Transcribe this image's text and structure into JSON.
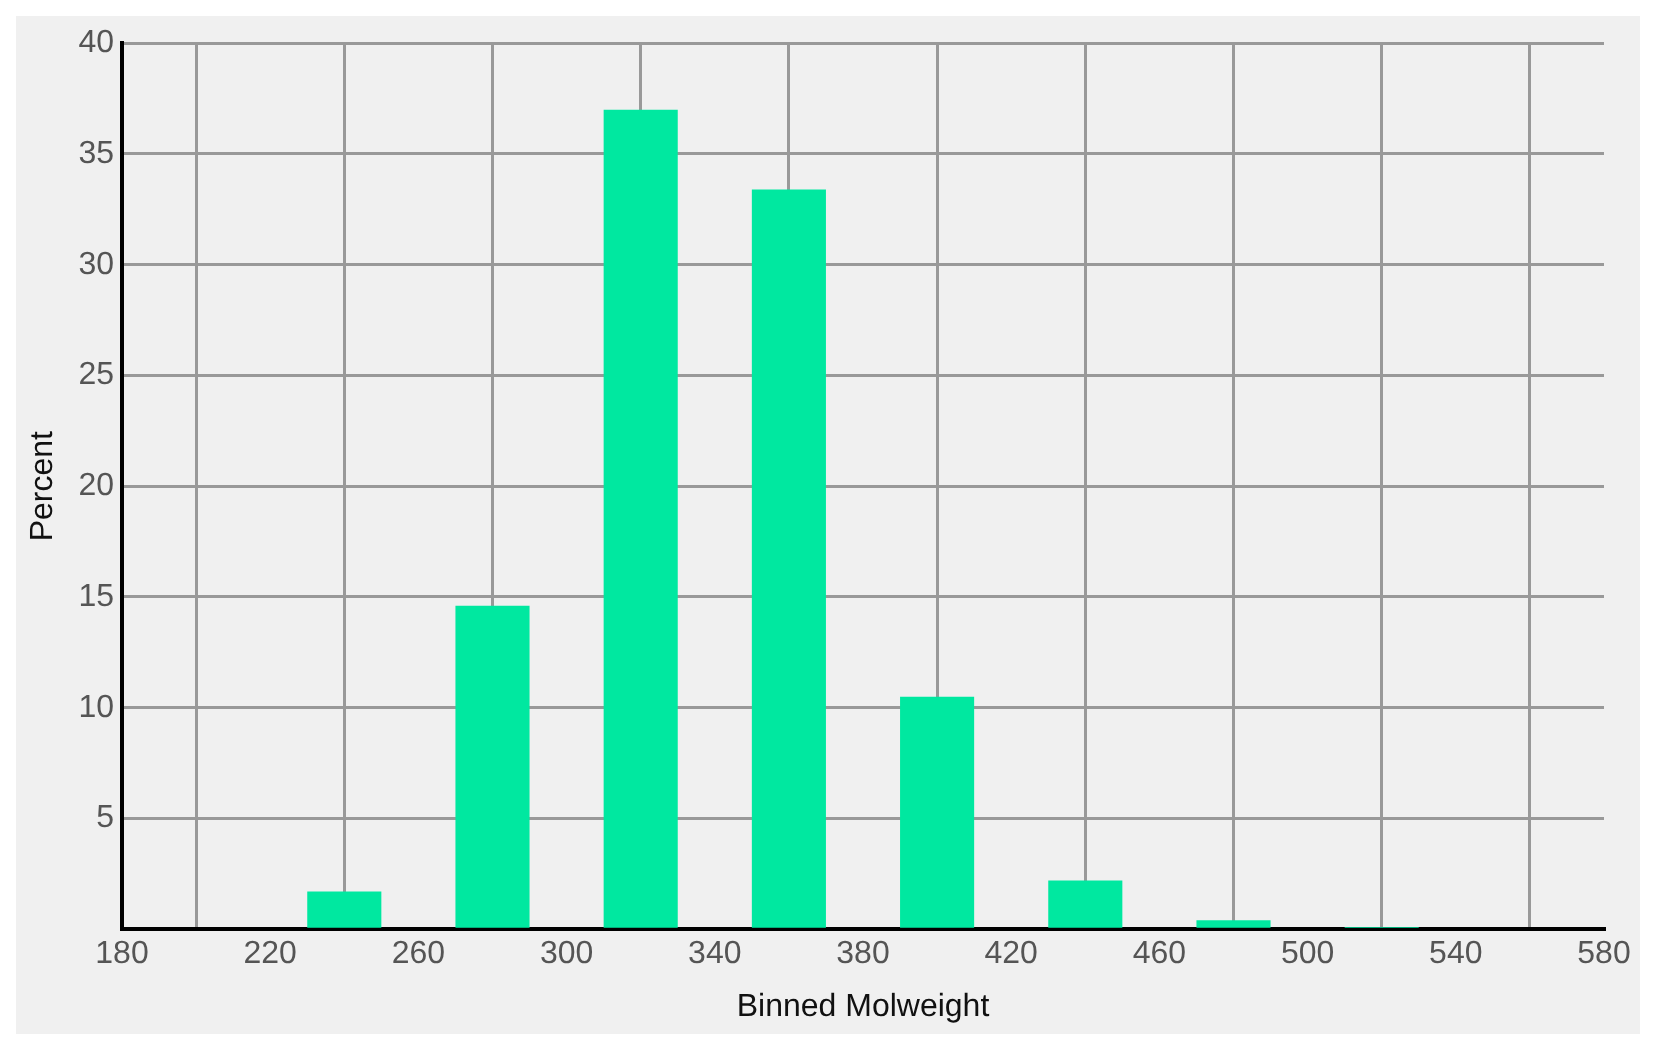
{
  "chart_data": {
    "type": "histogram",
    "xlabel": "Binned Molweight",
    "ylabel": "Percent",
    "bins": [
      180,
      220,
      260,
      300,
      340,
      380,
      420,
      460,
      500,
      540,
      580
    ],
    "values": [
      0,
      1.7,
      14.6,
      37.0,
      33.4,
      10.5,
      2.2,
      0.4,
      0.1,
      0
    ],
    "color": "#00e8a0",
    "xlim": [
      180,
      580
    ],
    "xticks": [
      180,
      220,
      260,
      300,
      340,
      380,
      420,
      460,
      500,
      540,
      580
    ],
    "ylim": [
      0,
      40
    ],
    "yticks": [
      {
        "value": 0,
        "label": null
      },
      5,
      10,
      15,
      20,
      25,
      30,
      35,
      40
    ],
    "grid": true,
    "legend": false
  }
}
